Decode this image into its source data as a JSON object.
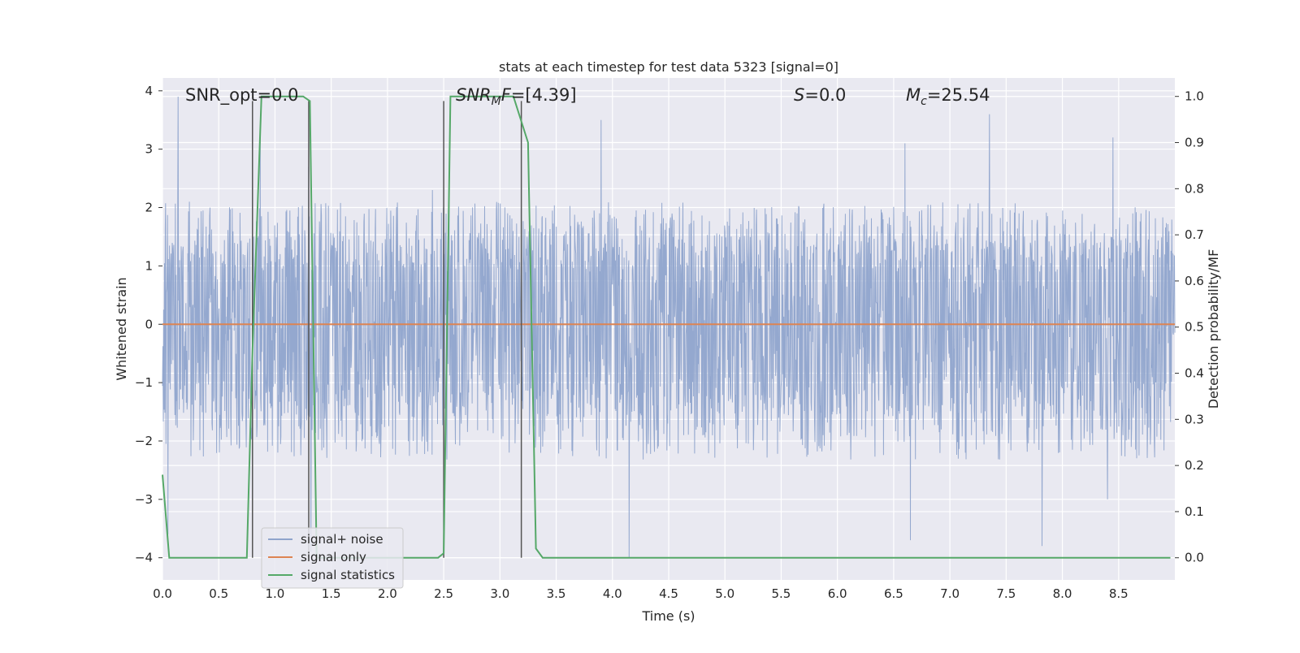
{
  "chart_data": {
    "type": "line",
    "title": "stats at each timestep for test data 5323 [signal=0]",
    "xlabel": "Time (s)",
    "ylabel": "Whitened strain",
    "y2label": "Detection probability/MF",
    "xlim": [
      0.0,
      9.0
    ],
    "ylim": [
      -4.38,
      4.22
    ],
    "y2lim": [
      -0.048,
      1.04
    ],
    "xticks": [
      "0.0",
      "0.5",
      "1.0",
      "1.5",
      "2.0",
      "2.5",
      "3.0",
      "3.5",
      "4.0",
      "4.5",
      "5.0",
      "5.5",
      "6.0",
      "6.5",
      "7.0",
      "7.5",
      "8.0",
      "8.5"
    ],
    "yticks": [
      "4",
      "3",
      "2",
      "1",
      "0",
      "−1",
      "−2",
      "−3",
      "−4"
    ],
    "y2ticks": [
      "1.0",
      "0.9",
      "0.8",
      "0.7",
      "0.6",
      "0.5",
      "0.4",
      "0.3",
      "0.2",
      "0.1",
      "0.0"
    ],
    "grid": true,
    "legend_position": "lower-left",
    "annotations": {
      "snr_opt": "SNR_opt=0.0",
      "snr_mf_main": "SNR",
      "snr_mf_sub": "M",
      "snr_mf_tail": "F",
      "snr_mf_value": "=[4.39]",
      "s_symbol": "S",
      "s_value": "=0.0",
      "mc_symbol": "M",
      "mc_sub": "c",
      "mc_value": "=25.54"
    },
    "series": [
      {
        "name": "signal+ noise",
        "color": "#8fa4cc",
        "axis": "left",
        "kind": "noise",
        "typical_range": [
          -1.6,
          1.5
        ],
        "duration": 9.0,
        "notable_peaks": [
          [
            0.14,
            3.9
          ],
          [
            0.87,
            3.3
          ],
          [
            1.3,
            2.7
          ],
          [
            2.4,
            2.3
          ],
          [
            2.5,
            3.5
          ],
          [
            3.9,
            3.5
          ],
          [
            6.6,
            3.1
          ],
          [
            7.35,
            3.6
          ],
          [
            8.45,
            3.2
          ]
        ],
        "notable_troughs": [
          [
            0.05,
            -3.6
          ],
          [
            1.32,
            -3.9
          ],
          [
            2.5,
            -3.6
          ],
          [
            4.15,
            -4.0
          ],
          [
            6.65,
            -3.7
          ],
          [
            7.82,
            -3.8
          ],
          [
            8.4,
            -3.0
          ]
        ]
      },
      {
        "name": "signal only",
        "color": "#dd8452",
        "axis": "left",
        "x": [
          0.0,
          9.0
        ],
        "y": [
          0.0,
          0.0
        ]
      },
      {
        "name": "signal statistics",
        "color": "#55a868",
        "axis": "right",
        "x": [
          0.0,
          0.06,
          0.12,
          0.75,
          0.8,
          0.88,
          1.25,
          1.31,
          1.37,
          2.45,
          2.5,
          2.56,
          3.12,
          3.25,
          3.32,
          3.38,
          8.96
        ],
        "y": [
          0.18,
          0.0,
          0.0,
          0.0,
          0.45,
          1.0,
          1.0,
          0.99,
          0.0,
          0.0,
          0.01,
          1.0,
          1.0,
          0.9,
          0.02,
          0.0,
          0.0
        ]
      }
    ],
    "vertical_lines": [
      0.8,
      1.3,
      2.5,
      3.19
    ],
    "vertical_line_color": "#555555",
    "vline_range_y2": [
      0.0,
      0.99
    ],
    "colors": {
      "plot_background": "#e9e9f1",
      "grid": "#ffffff"
    }
  }
}
